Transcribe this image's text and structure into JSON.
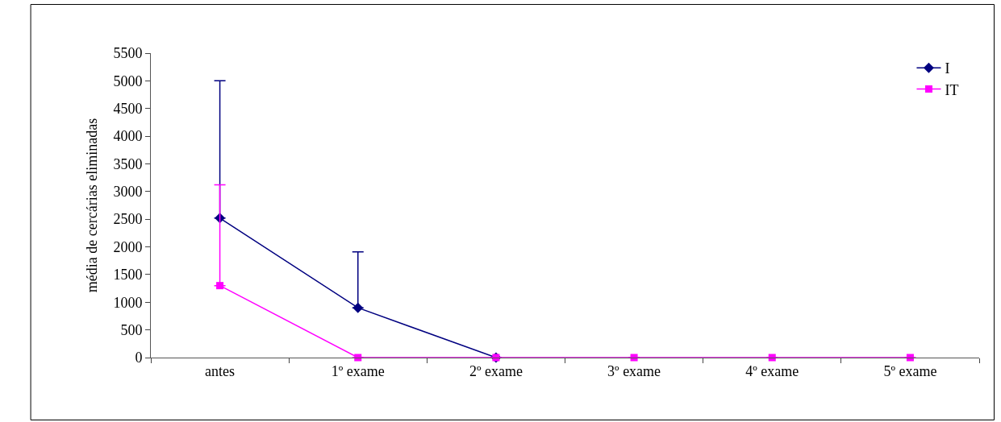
{
  "chart_data": {
    "type": "line",
    "ylabel": "média de cercárias eliminadas",
    "categories": [
      "antes",
      "1º exame",
      "2º exame",
      "3º exame",
      "4º exame",
      "5º exame"
    ],
    "series": [
      {
        "name": "I",
        "color": "#000080",
        "marker": "diamond",
        "values": [
          2520,
          900,
          0,
          null,
          null,
          null
        ],
        "errors": [
          [
            2520,
            5000
          ],
          [
            900,
            1910
          ],
          null,
          null,
          null,
          null
        ]
      },
      {
        "name": "IT",
        "color": "#ff00ff",
        "marker": "square",
        "values": [
          1300,
          0,
          0,
          0,
          0,
          0
        ],
        "errors": [
          [
            1300,
            3120
          ],
          null,
          null,
          null,
          null,
          null
        ]
      }
    ],
    "ylim": [
      0,
      5500
    ],
    "yticks": [
      0,
      500,
      1000,
      1500,
      2000,
      2500,
      3000,
      3500,
      4000,
      4500,
      5000,
      5500
    ],
    "grid": false,
    "legend": "top right",
    "line_style": "solid"
  }
}
